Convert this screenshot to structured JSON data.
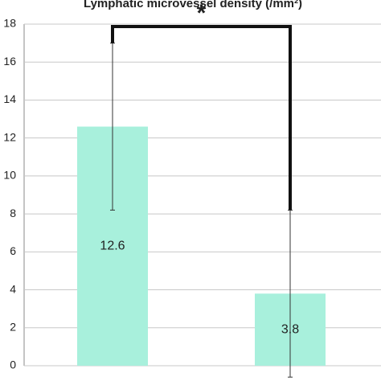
{
  "chart_data": {
    "type": "bar",
    "title": "Lymphatic microvessel density (/mm²)",
    "categories": [
      null,
      null
    ],
    "values": [
      12.6,
      3.8
    ],
    "errors": [
      4.4,
      4.4
    ],
    "color": "#a8f0dc",
    "ylim": [
      0,
      18
    ],
    "yticks": [
      0,
      2,
      4,
      6,
      8,
      10,
      12,
      14,
      16,
      18
    ],
    "grid": true,
    "annotation": "*"
  }
}
